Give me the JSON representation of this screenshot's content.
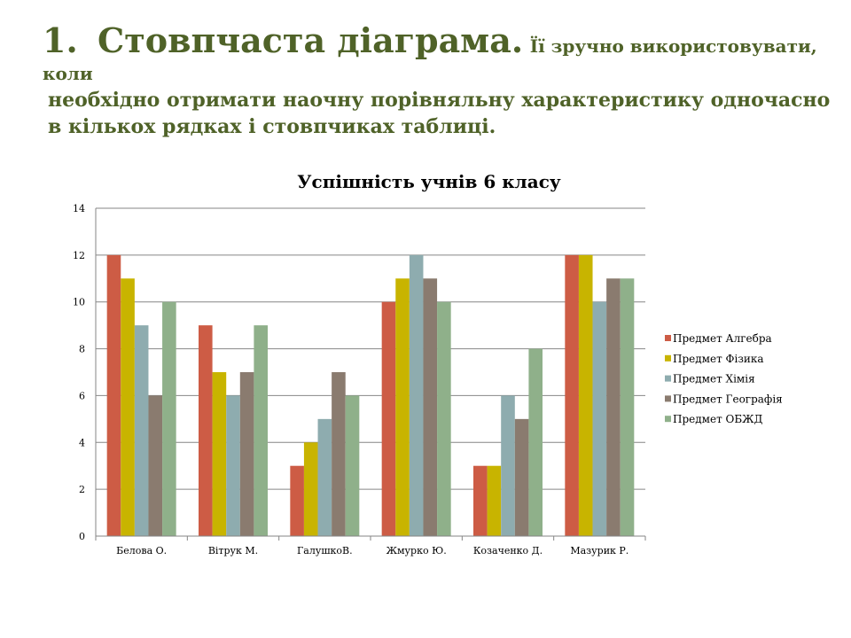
{
  "heading": {
    "number": "1.",
    "title": "Стовпчаста діаграма.",
    "text_line1": "Її зручно використовувати, коли",
    "text_line2": "необхідно отримати наочну порівняльну характеристику одночасно в кількох рядках і стовпчиках таблиці."
  },
  "colors": {
    "heading": "#4f6228",
    "gridline": "#868686"
  },
  "chart_data": {
    "type": "bar",
    "title": "Успішність учнів 6 класу",
    "categories": [
      "Белова О.",
      "Вітрук М.",
      "ГалушкоВ.",
      "Жмурко Ю.",
      "Козаченко Д.",
      "Мазурик Р."
    ],
    "series": [
      {
        "name": "Предмет Алгебра",
        "color": "#cd5c45",
        "values": [
          12,
          9,
          3,
          10,
          3,
          12
        ]
      },
      {
        "name": "Предмет Фізика",
        "color": "#c8b400",
        "values": [
          11,
          7,
          4,
          11,
          3,
          12
        ]
      },
      {
        "name": "Предмет Хімія",
        "color": "#8eacaf",
        "values": [
          9,
          6,
          5,
          12,
          6,
          10
        ]
      },
      {
        "name": "Предмет Географія",
        "color": "#8a7b6f",
        "values": [
          6,
          7,
          7,
          11,
          5,
          11
        ]
      },
      {
        "name": "Предмет ОБЖД",
        "color": "#8fb08a",
        "values": [
          10,
          9,
          6,
          10,
          8,
          11
        ]
      }
    ],
    "yticks": [
      0,
      2,
      4,
      6,
      8,
      10,
      12,
      14
    ],
    "ylim": [
      0,
      14
    ],
    "grid": true,
    "legend_position": "right"
  }
}
